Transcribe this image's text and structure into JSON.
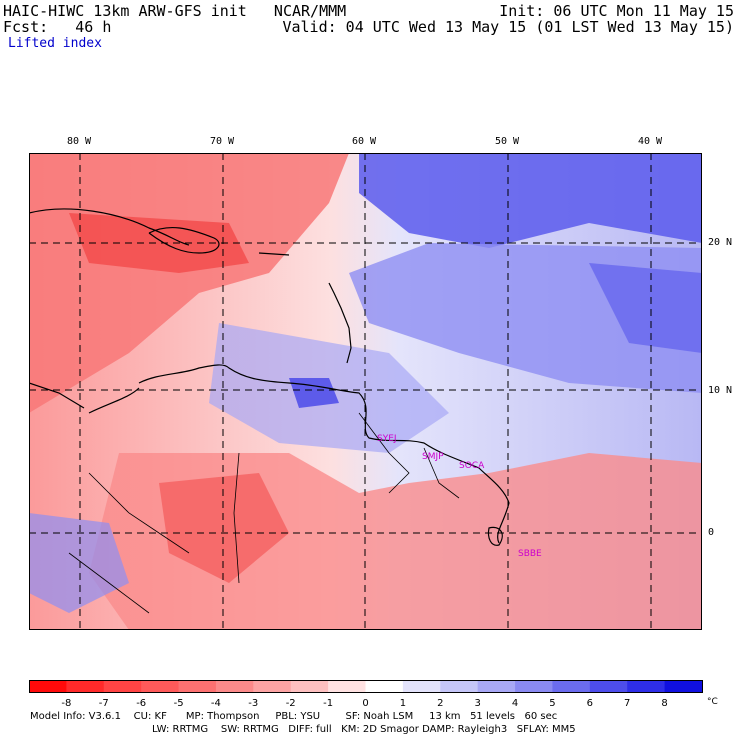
{
  "header": {
    "line1_left": "HAIC-HIWC 13km ARW-GFS init   NCAR/MMM",
    "line1_right": "Init: 06 UTC Mon 11 May 15",
    "line2_left": "Fcst:   46 h",
    "line2_right": "Valid: 04 UTC Wed 13 May 15 (01 LST Wed 13 May 15)",
    "field": "Lifted index"
  },
  "axes": {
    "lon_labels": [
      "80 W",
      "70 W",
      "60 W",
      "50 W",
      "40 W"
    ],
    "lat_labels": [
      "20 N",
      "10 N",
      "0"
    ]
  },
  "stations": [
    "SYEJ",
    "SMJP",
    "SOCA",
    "SBBE"
  ],
  "colorbar": {
    "ticks": [
      "-8",
      "-7",
      "-6",
      "-5",
      "-4",
      "-3",
      "-2",
      "-1",
      "0",
      "1",
      "2",
      "3",
      "4",
      "5",
      "6",
      "7",
      "8"
    ],
    "unit": "°C",
    "colors": [
      "#ff0a0a",
      "#ff2a2a",
      "#ff4444",
      "#fe5a5a",
      "#fc7171",
      "#fb8a8a",
      "#fca4a4",
      "#fdc0c0",
      "#ffe2e2",
      "#ffffff",
      "#e3e3fb",
      "#c5c6f8",
      "#a8a8f5",
      "#8a8af1",
      "#6b6cee",
      "#4d4deb",
      "#2e2ee8",
      "#1010e0"
    ]
  },
  "model_info": {
    "line1": "Model Info: V3.6.1    CU: KF      MP: Thompson     PBL: YSU        SF: Noah LSM     13 km   51 levels   60 sec",
    "line2": "LW: RRTMG    SW: RRTMG   DIFF: full   KM: 2D Smagor DAMP: Rayleigh3   SFLAY: MM5"
  }
}
